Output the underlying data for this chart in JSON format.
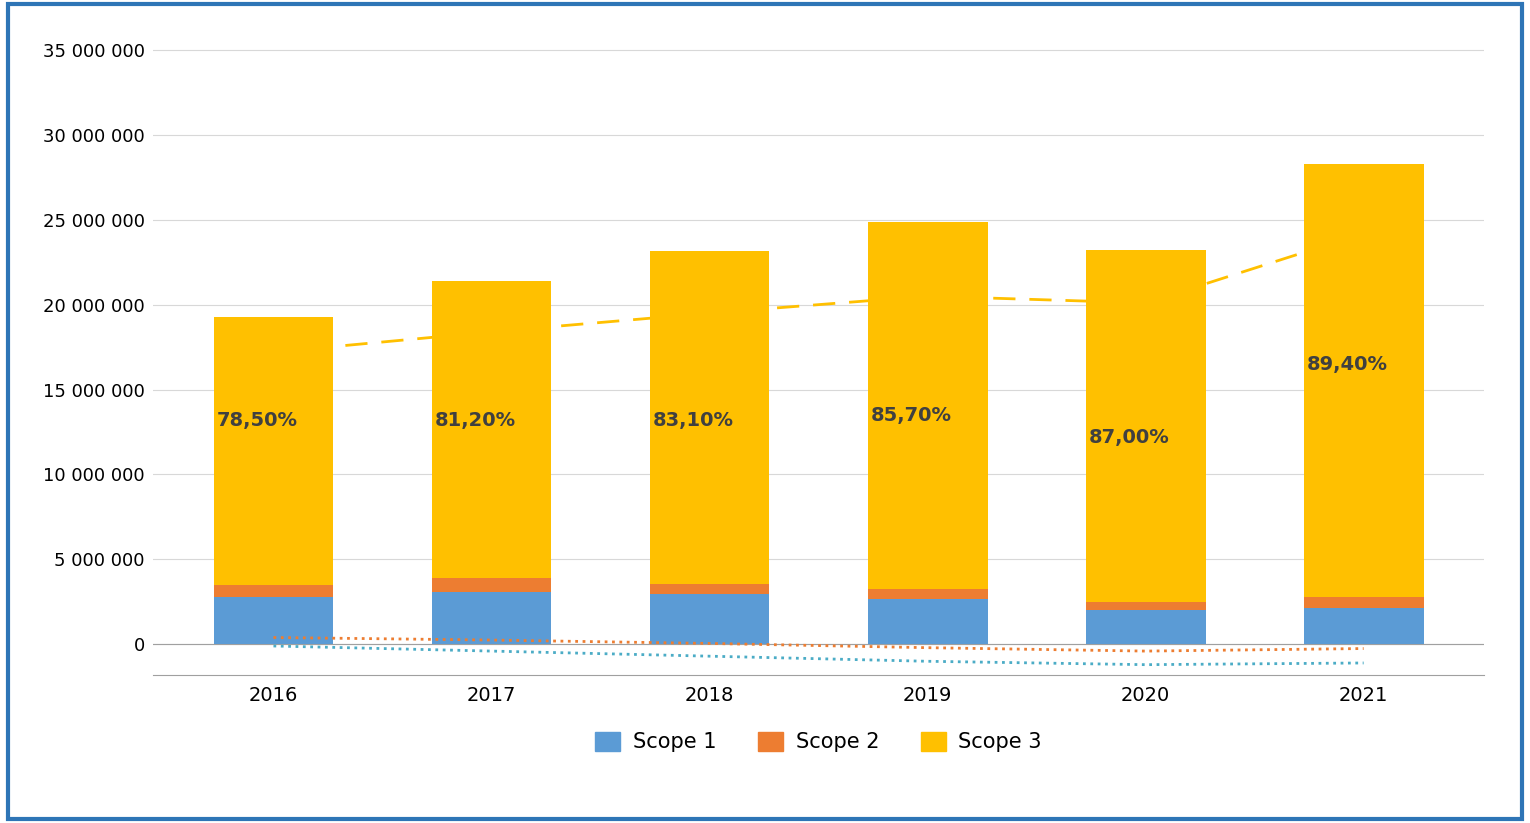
{
  "years": [
    2016,
    2017,
    2018,
    2019,
    2020,
    2021
  ],
  "scope1": [
    2800000,
    3100000,
    2950000,
    2650000,
    2000000,
    2150000
  ],
  "scope2": [
    700000,
    780000,
    620000,
    620000,
    510000,
    620000
  ],
  "scope3": [
    15800000,
    17500000,
    19600000,
    21600000,
    20700000,
    25500000
  ],
  "percentages": [
    "78,50%",
    "81,20%",
    "83,10%",
    "85,70%",
    "87,00%",
    "89,40%"
  ],
  "scope3_trend": [
    17200000,
    18400000,
    19500000,
    20500000,
    20100000,
    24200000
  ],
  "scope2_trend": [
    400000,
    250000,
    50000,
    -200000,
    -400000,
    -250000
  ],
  "scope1_trend": [
    -100000,
    -400000,
    -700000,
    -1000000,
    -1200000,
    -1100000
  ],
  "bar_width": 0.55,
  "scope1_color": "#5B9BD5",
  "scope2_color": "#ED7D31",
  "scope3_color": "#FFC000",
  "scope3_line_color": "#FFC000",
  "scope2_line_color": "#ED7D31",
  "scope1_line_color": "#4BACC6",
  "ylim_min": -1800000,
  "ylim_max": 36000000,
  "yticks": [
    0,
    5000000,
    10000000,
    15000000,
    20000000,
    25000000,
    30000000,
    35000000
  ],
  "background_color": "#ffffff",
  "border_color": "#2E75B6",
  "pct_fontsize": 14,
  "pct_color": "#404040",
  "legend_fontsize": 15,
  "tick_fontsize": 13
}
